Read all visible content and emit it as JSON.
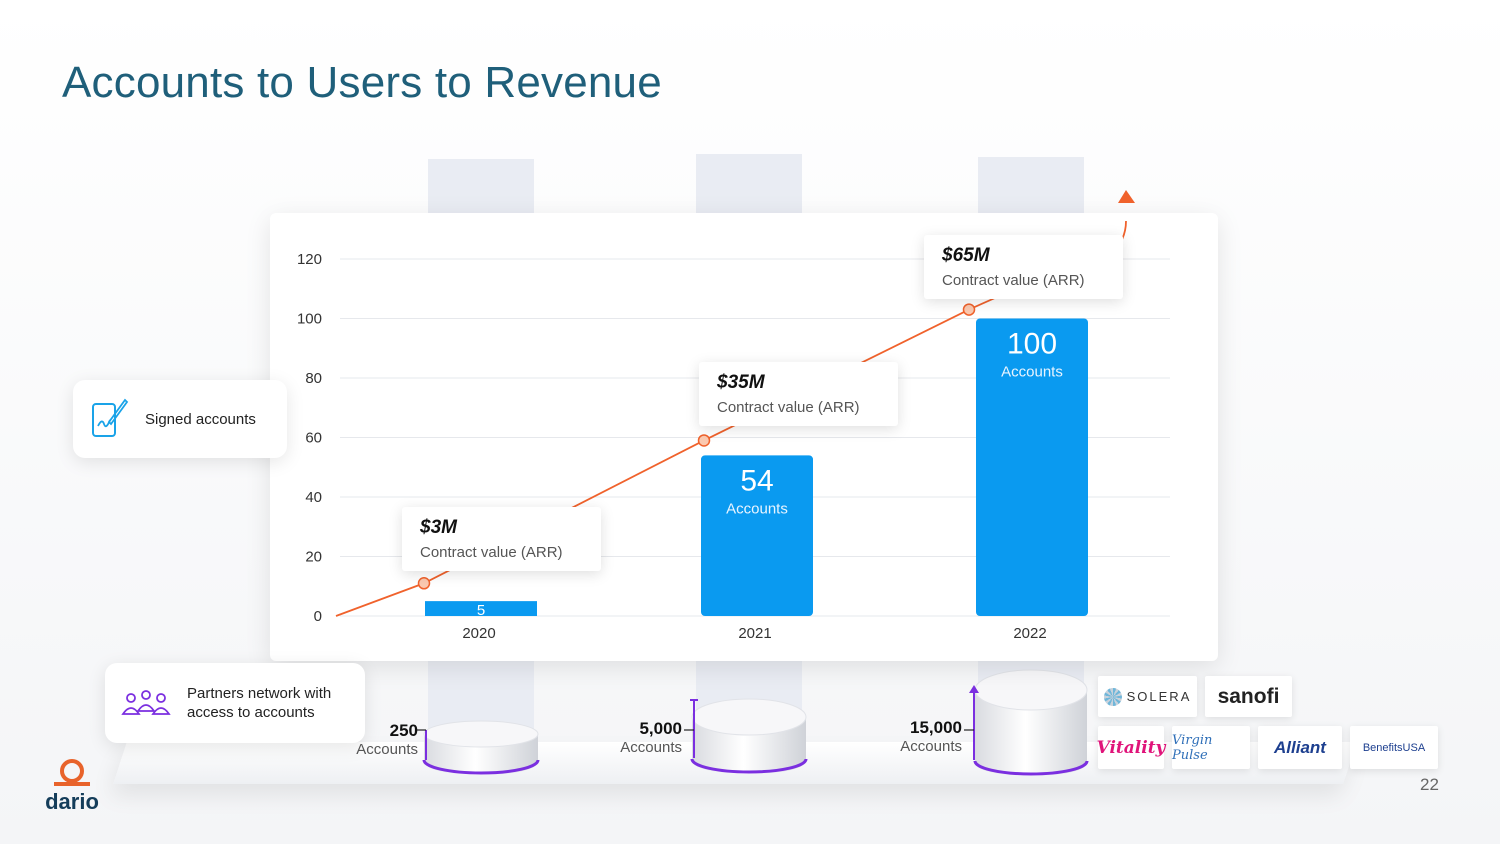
{
  "title": "Accounts to Users to Revenue",
  "page_number": "22",
  "brand": {
    "name": "dario",
    "color": "#e8632b"
  },
  "colors": {
    "bar": "#0a9af0",
    "line": "#f0622c",
    "title": "#1f5f7a",
    "cylinder_accent": "#7b2fe0"
  },
  "chart_data": {
    "type": "bar",
    "title": "",
    "categories": [
      "2020",
      "2021",
      "2022"
    ],
    "series": [
      {
        "name": "Signed accounts",
        "values": [
          5,
          54,
          100
        ]
      }
    ],
    "bar_labels": [
      {
        "value": "5",
        "text": ""
      },
      {
        "value": "54",
        "text": "Accounts"
      },
      {
        "value": "100",
        "text": "Accounts"
      }
    ],
    "yticks": [
      "0",
      "20",
      "40",
      "60",
      "80",
      "100",
      "120"
    ],
    "ylim": [
      0,
      120
    ],
    "grid": true,
    "overlay_line": {
      "name": "Contract value (ARR)",
      "values": [
        11,
        59,
        103
      ]
    }
  },
  "callouts": [
    {
      "value": "$3M",
      "label": "Contract value (ARR)"
    },
    {
      "value": "$35M",
      "label": "Contract value (ARR)"
    },
    {
      "value": "$65M",
      "label": "Contract value (ARR)"
    }
  ],
  "legend": {
    "signed": "Signed accounts",
    "partners": "Partners network with access to accounts"
  },
  "account_counts": [
    {
      "number": "250",
      "label": "Accounts"
    },
    {
      "number": "5,000",
      "label": "Accounts"
    },
    {
      "number": "15,000",
      "label": "Accounts"
    }
  ],
  "partner_logos": [
    "SOLERA",
    "sanofi",
    "Vitality",
    "Virgin Pulse",
    "Alliant",
    "BenefitsUSA"
  ]
}
